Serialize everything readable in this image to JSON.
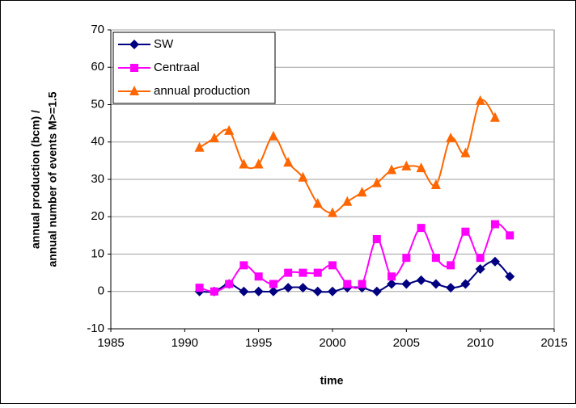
{
  "chart_data": {
    "type": "line",
    "smooth": true,
    "x_label": "time",
    "y_label": [
      "annual production (bcm) /",
      "annual number of events M>=1.5"
    ],
    "x": [
      1991,
      1992,
      1993,
      1994,
      1995,
      1996,
      1997,
      1998,
      1999,
      2000,
      2001,
      2002,
      2003,
      2004,
      2005,
      2006,
      2007,
      2008,
      2009,
      2010,
      2011,
      2012
    ],
    "series": [
      {
        "name": "SW",
        "color": "#000080",
        "marker": "diamond",
        "values": [
          0,
          0,
          2,
          0,
          0,
          0,
          1,
          1,
          0,
          0,
          1,
          1,
          0,
          2,
          2,
          3,
          2,
          1,
          2,
          6,
          8,
          4
        ]
      },
      {
        "name": "Centraal",
        "color": "#ff00ff",
        "marker": "square",
        "values": [
          1,
          0,
          2,
          7,
          4,
          2,
          5,
          5,
          5,
          7,
          2,
          2,
          14,
          4,
          9,
          17,
          9,
          7,
          16,
          9,
          18,
          15
        ]
      },
      {
        "name": "annual production",
        "color": "#ff6600",
        "marker": "triangle",
        "values": [
          38.5,
          41,
          43,
          34,
          34,
          41.5,
          34.5,
          30.5,
          23.5,
          21,
          24,
          26.5,
          29,
          32.5,
          33.5,
          33,
          28.5,
          41,
          37,
          51,
          46.5,
          null
        ]
      }
    ],
    "xlim": [
      1985,
      2015
    ],
    "xticks": [
      1985,
      1990,
      1995,
      2000,
      2005,
      2010,
      2015
    ],
    "ylim": [
      -10,
      70
    ],
    "yticks": [
      -10,
      0,
      10,
      20,
      30,
      40,
      50,
      60,
      70
    ],
    "grid": true,
    "legend": "top-left"
  }
}
